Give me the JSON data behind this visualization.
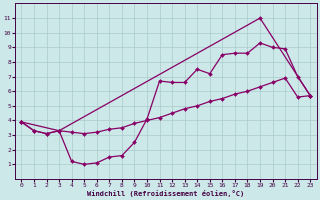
{
  "xlabel": "Windchill (Refroidissement éolien,°C)",
  "bg_color": "#cce8e8",
  "grid_color": "#aacccc",
  "line_color": "#880066",
  "xlim": [
    -0.5,
    23.5
  ],
  "ylim": [
    0,
    12
  ],
  "xticks": [
    0,
    1,
    2,
    3,
    4,
    5,
    6,
    7,
    8,
    9,
    10,
    11,
    12,
    13,
    14,
    15,
    16,
    17,
    18,
    19,
    20,
    21,
    22,
    23
  ],
  "yticks": [
    1,
    2,
    3,
    4,
    5,
    6,
    7,
    8,
    9,
    10,
    11
  ],
  "series1_x": [
    0,
    1,
    2,
    3,
    4,
    5,
    6,
    7,
    8,
    9,
    10,
    11,
    12,
    13,
    14,
    15,
    16,
    17,
    18,
    19,
    20,
    21,
    22,
    23
  ],
  "series1_y": [
    3.9,
    3.3,
    3.1,
    3.3,
    1.2,
    1.0,
    1.1,
    1.5,
    1.6,
    2.5,
    4.1,
    6.7,
    6.6,
    6.6,
    7.5,
    7.2,
    8.5,
    8.6,
    8.6,
    9.3,
    9.0,
    8.9,
    7.0,
    5.7
  ],
  "series2_x": [
    0,
    1,
    2,
    3,
    4,
    5,
    6,
    7,
    8,
    9,
    10,
    11,
    12,
    13,
    14,
    15,
    16,
    17,
    18,
    19,
    20,
    21,
    22,
    23
  ],
  "series2_y": [
    3.9,
    3.3,
    3.1,
    3.3,
    3.2,
    3.1,
    3.2,
    3.4,
    3.5,
    3.8,
    4.0,
    4.2,
    4.5,
    4.8,
    5.0,
    5.3,
    5.5,
    5.8,
    6.0,
    6.3,
    6.6,
    6.9,
    5.6,
    5.7
  ],
  "series3_x": [
    0,
    3,
    19,
    23
  ],
  "series3_y": [
    3.9,
    3.3,
    11.0,
    5.7
  ]
}
